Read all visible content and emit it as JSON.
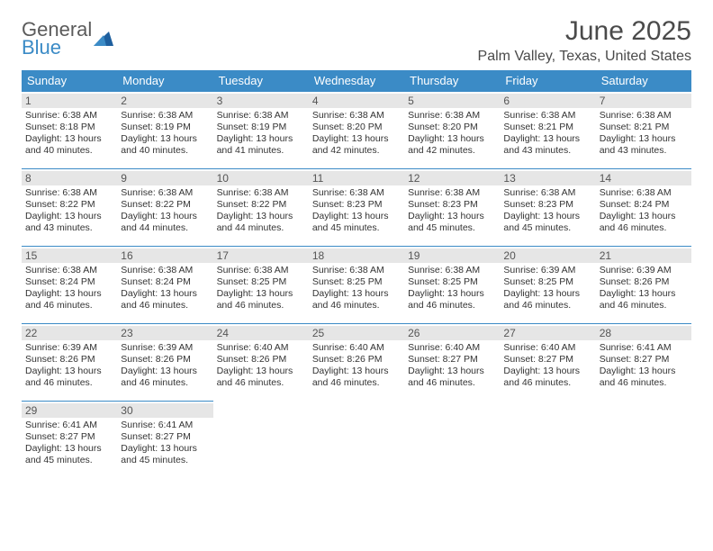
{
  "logo": {
    "line1": "General",
    "line2": "Blue"
  },
  "colors": {
    "header_bg": "#3b8bc6",
    "header_text": "#ffffff",
    "daynum_bg": "#e6e6e6",
    "border": "#3b8bc6",
    "body_text": "#333333",
    "title_text": "#4a4a4a"
  },
  "title": "June 2025",
  "location": "Palm Valley, Texas, United States",
  "weekdays": [
    "Sunday",
    "Monday",
    "Tuesday",
    "Wednesday",
    "Thursday",
    "Friday",
    "Saturday"
  ],
  "weeks": [
    [
      {
        "n": "1",
        "sr": "Sunrise: 6:38 AM",
        "ss": "Sunset: 8:18 PM",
        "dl": "Daylight: 13 hours and 40 minutes."
      },
      {
        "n": "2",
        "sr": "Sunrise: 6:38 AM",
        "ss": "Sunset: 8:19 PM",
        "dl": "Daylight: 13 hours and 40 minutes."
      },
      {
        "n": "3",
        "sr": "Sunrise: 6:38 AM",
        "ss": "Sunset: 8:19 PM",
        "dl": "Daylight: 13 hours and 41 minutes."
      },
      {
        "n": "4",
        "sr": "Sunrise: 6:38 AM",
        "ss": "Sunset: 8:20 PM",
        "dl": "Daylight: 13 hours and 42 minutes."
      },
      {
        "n": "5",
        "sr": "Sunrise: 6:38 AM",
        "ss": "Sunset: 8:20 PM",
        "dl": "Daylight: 13 hours and 42 minutes."
      },
      {
        "n": "6",
        "sr": "Sunrise: 6:38 AM",
        "ss": "Sunset: 8:21 PM",
        "dl": "Daylight: 13 hours and 43 minutes."
      },
      {
        "n": "7",
        "sr": "Sunrise: 6:38 AM",
        "ss": "Sunset: 8:21 PM",
        "dl": "Daylight: 13 hours and 43 minutes."
      }
    ],
    [
      {
        "n": "8",
        "sr": "Sunrise: 6:38 AM",
        "ss": "Sunset: 8:22 PM",
        "dl": "Daylight: 13 hours and 43 minutes."
      },
      {
        "n": "9",
        "sr": "Sunrise: 6:38 AM",
        "ss": "Sunset: 8:22 PM",
        "dl": "Daylight: 13 hours and 44 minutes."
      },
      {
        "n": "10",
        "sr": "Sunrise: 6:38 AM",
        "ss": "Sunset: 8:22 PM",
        "dl": "Daylight: 13 hours and 44 minutes."
      },
      {
        "n": "11",
        "sr": "Sunrise: 6:38 AM",
        "ss": "Sunset: 8:23 PM",
        "dl": "Daylight: 13 hours and 45 minutes."
      },
      {
        "n": "12",
        "sr": "Sunrise: 6:38 AM",
        "ss": "Sunset: 8:23 PM",
        "dl": "Daylight: 13 hours and 45 minutes."
      },
      {
        "n": "13",
        "sr": "Sunrise: 6:38 AM",
        "ss": "Sunset: 8:23 PM",
        "dl": "Daylight: 13 hours and 45 minutes."
      },
      {
        "n": "14",
        "sr": "Sunrise: 6:38 AM",
        "ss": "Sunset: 8:24 PM",
        "dl": "Daylight: 13 hours and 46 minutes."
      }
    ],
    [
      {
        "n": "15",
        "sr": "Sunrise: 6:38 AM",
        "ss": "Sunset: 8:24 PM",
        "dl": "Daylight: 13 hours and 46 minutes."
      },
      {
        "n": "16",
        "sr": "Sunrise: 6:38 AM",
        "ss": "Sunset: 8:24 PM",
        "dl": "Daylight: 13 hours and 46 minutes."
      },
      {
        "n": "17",
        "sr": "Sunrise: 6:38 AM",
        "ss": "Sunset: 8:25 PM",
        "dl": "Daylight: 13 hours and 46 minutes."
      },
      {
        "n": "18",
        "sr": "Sunrise: 6:38 AM",
        "ss": "Sunset: 8:25 PM",
        "dl": "Daylight: 13 hours and 46 minutes."
      },
      {
        "n": "19",
        "sr": "Sunrise: 6:38 AM",
        "ss": "Sunset: 8:25 PM",
        "dl": "Daylight: 13 hours and 46 minutes."
      },
      {
        "n": "20",
        "sr": "Sunrise: 6:39 AM",
        "ss": "Sunset: 8:25 PM",
        "dl": "Daylight: 13 hours and 46 minutes."
      },
      {
        "n": "21",
        "sr": "Sunrise: 6:39 AM",
        "ss": "Sunset: 8:26 PM",
        "dl": "Daylight: 13 hours and 46 minutes."
      }
    ],
    [
      {
        "n": "22",
        "sr": "Sunrise: 6:39 AM",
        "ss": "Sunset: 8:26 PM",
        "dl": "Daylight: 13 hours and 46 minutes."
      },
      {
        "n": "23",
        "sr": "Sunrise: 6:39 AM",
        "ss": "Sunset: 8:26 PM",
        "dl": "Daylight: 13 hours and 46 minutes."
      },
      {
        "n": "24",
        "sr": "Sunrise: 6:40 AM",
        "ss": "Sunset: 8:26 PM",
        "dl": "Daylight: 13 hours and 46 minutes."
      },
      {
        "n": "25",
        "sr": "Sunrise: 6:40 AM",
        "ss": "Sunset: 8:26 PM",
        "dl": "Daylight: 13 hours and 46 minutes."
      },
      {
        "n": "26",
        "sr": "Sunrise: 6:40 AM",
        "ss": "Sunset: 8:27 PM",
        "dl": "Daylight: 13 hours and 46 minutes."
      },
      {
        "n": "27",
        "sr": "Sunrise: 6:40 AM",
        "ss": "Sunset: 8:27 PM",
        "dl": "Daylight: 13 hours and 46 minutes."
      },
      {
        "n": "28",
        "sr": "Sunrise: 6:41 AM",
        "ss": "Sunset: 8:27 PM",
        "dl": "Daylight: 13 hours and 46 minutes."
      }
    ],
    [
      {
        "n": "29",
        "sr": "Sunrise: 6:41 AM",
        "ss": "Sunset: 8:27 PM",
        "dl": "Daylight: 13 hours and 45 minutes."
      },
      {
        "n": "30",
        "sr": "Sunrise: 6:41 AM",
        "ss": "Sunset: 8:27 PM",
        "dl": "Daylight: 13 hours and 45 minutes."
      },
      null,
      null,
      null,
      null,
      null
    ]
  ]
}
